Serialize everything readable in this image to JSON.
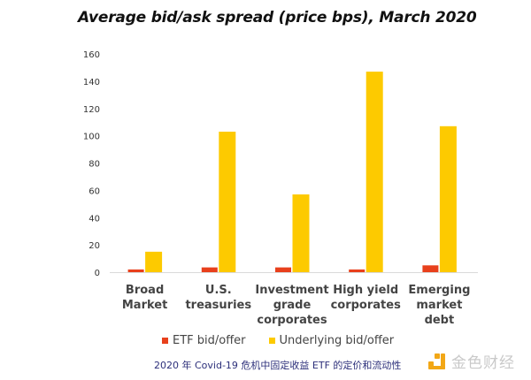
{
  "chart_data": {
    "type": "bar",
    "title": "Average bid/ask spread (price bps), March 2020",
    "xlabel": "",
    "ylabel": "",
    "ylim": [
      0,
      160
    ],
    "yticks": [
      0,
      20,
      40,
      60,
      80,
      100,
      120,
      140,
      160
    ],
    "grid": false,
    "legend_position": "bottom",
    "categories": [
      [
        "Broad",
        "Market"
      ],
      [
        "U.S.",
        "treasuries"
      ],
      [
        "Investment",
        "grade",
        "corporates"
      ],
      [
        "High yield",
        "corporates"
      ],
      [
        "Emerging",
        "market",
        "debt"
      ]
    ],
    "series": [
      {
        "name": "ETF bid/offer",
        "color": "#e8401c",
        "values": [
          2,
          3.5,
          3.5,
          2,
          5
        ]
      },
      {
        "name": "Underlying bid/offer",
        "color": "#fdca00",
        "values": [
          15,
          103,
          57,
          147,
          107
        ]
      }
    ]
  },
  "caption": "2020 年 Covid-19 危机中固定收益 ETF 的定价和流动性",
  "watermark": {
    "text": "金色财经"
  }
}
